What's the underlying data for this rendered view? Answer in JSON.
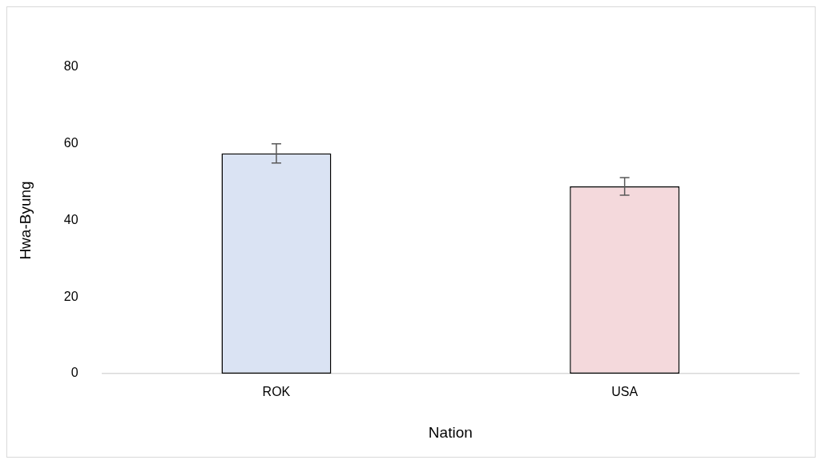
{
  "chart_data": {
    "type": "bar",
    "xlabel": "Nation",
    "ylabel": "Hwa-Byung",
    "categories": [
      "ROK",
      "USA"
    ],
    "values": [
      57.5,
      48.9
    ],
    "colors": [
      "#dae3f3",
      "#f4d9dc"
    ],
    "errors": [
      2.5,
      2.3
    ],
    "ylim": [
      0,
      80
    ],
    "yticks": [
      0,
      20,
      40,
      60,
      80
    ],
    "grid": false,
    "legend": false
  }
}
